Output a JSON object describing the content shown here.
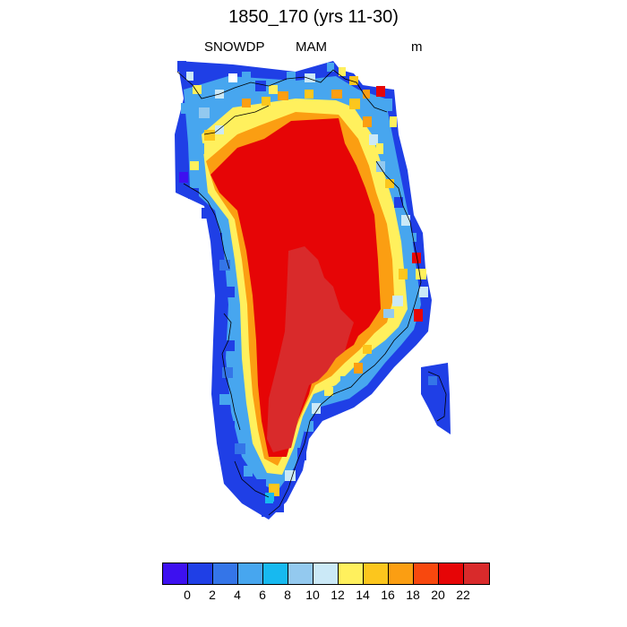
{
  "title": "1850_170 (yrs 11-30)",
  "variable": "SNOWDP",
  "season": "MAM",
  "units": "m",
  "colorbar": {
    "colors": [
      "#3d10f0",
      "#1f3fe6",
      "#3475e8",
      "#47a6ef",
      "#17b9f0",
      "#93c9ef",
      "#cbe9f7",
      "#fff05d",
      "#fcc61d",
      "#fb9e12",
      "#f8480e",
      "#e60506",
      "#d92a2b"
    ],
    "tick_labels": [
      "0",
      "2",
      "4",
      "6",
      "8",
      "10",
      "12",
      "14",
      "16",
      "18",
      "20",
      "22"
    ]
  },
  "map_data": {
    "type": "filled-grid",
    "region": "Greenland",
    "field": "SNOWDP",
    "levels": [
      0,
      2,
      4,
      6,
      8,
      10,
      12,
      14,
      16,
      18,
      20,
      22
    ]
  }
}
